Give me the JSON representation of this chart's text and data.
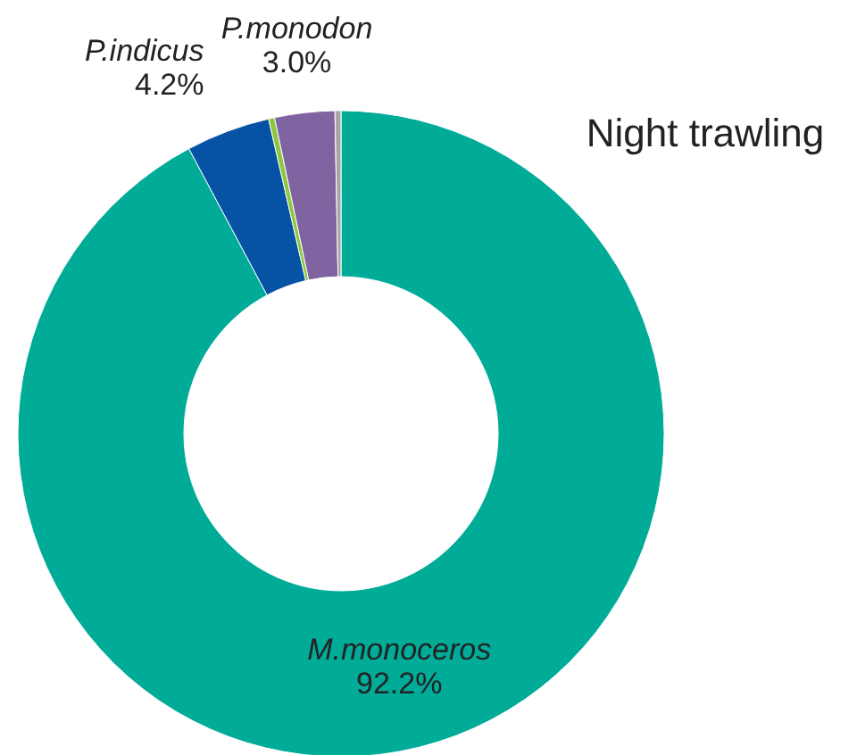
{
  "chart_data": {
    "type": "donut",
    "title": "Night trawling",
    "categories": [
      "M.monoceros",
      "P.indicus",
      null,
      "P.monodon",
      null
    ],
    "values": [
      92.2,
      4.2,
      0.3,
      3.0,
      0.3
    ],
    "colors": [
      "#00ab98",
      "#0652a4",
      "#8dc63f",
      "#8064a2",
      "#a6a6a6"
    ],
    "value_labels": [
      "92.2%",
      "4.2%",
      null,
      "3.0%",
      null
    ],
    "legend": false
  }
}
